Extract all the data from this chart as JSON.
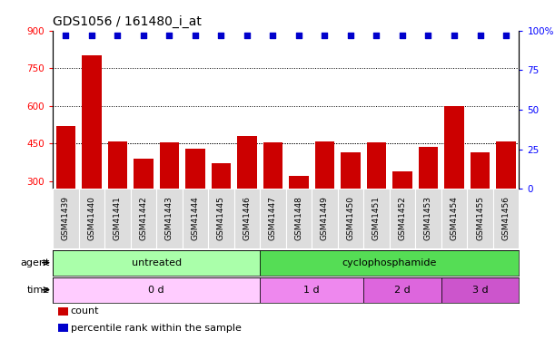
{
  "title": "GDS1056 / 161480_i_at",
  "samples": [
    "GSM41439",
    "GSM41440",
    "GSM41441",
    "GSM41442",
    "GSM41443",
    "GSM41444",
    "GSM41445",
    "GSM41446",
    "GSM41447",
    "GSM41448",
    "GSM41449",
    "GSM41450",
    "GSM41451",
    "GSM41452",
    "GSM41453",
    "GSM41454",
    "GSM41455",
    "GSM41456"
  ],
  "counts": [
    520,
    800,
    460,
    390,
    455,
    430,
    370,
    480,
    455,
    320,
    460,
    415,
    455,
    340,
    435,
    600,
    415,
    460
  ],
  "percentile_ranks": [
    97,
    97,
    97,
    97,
    97,
    97,
    97,
    97,
    97,
    97,
    97,
    97,
    97,
    97,
    97,
    97,
    97,
    97
  ],
  "bar_color": "#cc0000",
  "dot_color": "#0000cc",
  "ylim_left": [
    270,
    900
  ],
  "ylim_right": [
    0,
    100
  ],
  "yticks_left": [
    300,
    450,
    600,
    750,
    900
  ],
  "yticks_right": [
    0,
    25,
    50,
    75,
    100
  ],
  "yticklabels_right": [
    "0",
    "25",
    "50",
    "75",
    "100%"
  ],
  "grid_values": [
    450,
    600,
    750
  ],
  "agent_groups": [
    {
      "label": "untreated",
      "start": 0,
      "end": 8,
      "color": "#aaffaa"
    },
    {
      "label": "cyclophosphamide",
      "start": 8,
      "end": 18,
      "color": "#55dd55"
    }
  ],
  "time_groups": [
    {
      "label": "0 d",
      "start": 0,
      "end": 8,
      "color": "#ffccff"
    },
    {
      "label": "1 d",
      "start": 8,
      "end": 12,
      "color": "#ee88ee"
    },
    {
      "label": "2 d",
      "start": 12,
      "end": 15,
      "color": "#dd66dd"
    },
    {
      "label": "3 d",
      "start": 15,
      "end": 18,
      "color": "#cc55cc"
    }
  ],
  "legend_items": [
    {
      "label": "count",
      "color": "#cc0000"
    },
    {
      "label": "percentile rank within the sample",
      "color": "#0000cc"
    }
  ],
  "agent_label": "agent",
  "time_label": "time",
  "title_fontsize": 10,
  "tick_fontsize": 7.5,
  "bar_width": 0.75,
  "label_box_color": "#dddddd",
  "fig_bg": "#ffffff"
}
